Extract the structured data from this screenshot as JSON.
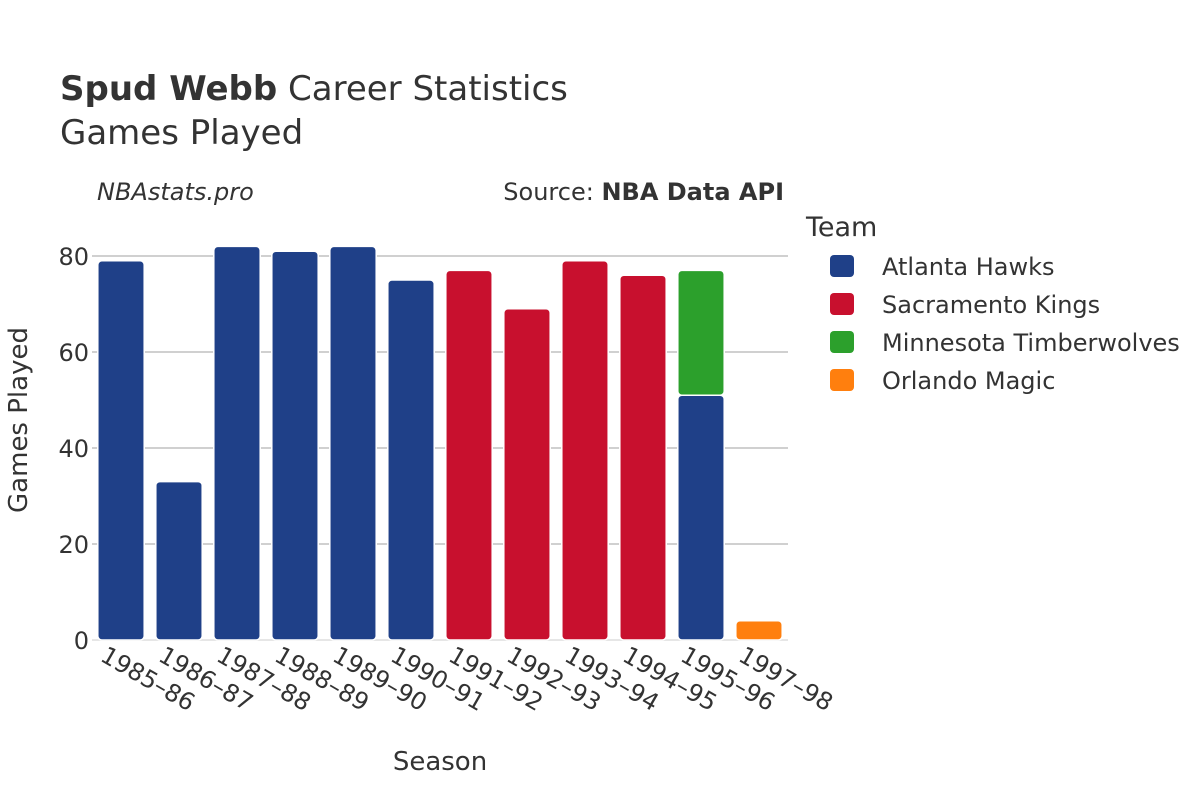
{
  "title": {
    "player": "Spud Webb",
    "rest": " Career Statistics",
    "subtitle": "Games Played"
  },
  "watermark": "NBAstats.pro",
  "source": {
    "prefix": "Source: ",
    "name": "NBA Data API"
  },
  "legend_title": "Team",
  "chart_data": {
    "type": "bar",
    "stacked": true,
    "xlabel": "Season",
    "ylabel": "Games Played",
    "categories": [
      "1985–86",
      "1986–87",
      "1987–88",
      "1988–89",
      "1989–90",
      "1990–91",
      "1991–92",
      "1992–93",
      "1993–94",
      "1994–95",
      "1995–96",
      "1997–98"
    ],
    "ylim": [
      0,
      85
    ],
    "yticks": [
      0,
      20,
      40,
      60,
      80
    ],
    "grid": true,
    "legend_position": "right",
    "series": [
      {
        "name": "Atlanta Hawks",
        "color": "#1f4088",
        "values": [
          79,
          33,
          82,
          81,
          82,
          75,
          0,
          0,
          0,
          0,
          51,
          0
        ]
      },
      {
        "name": "Sacramento Kings",
        "color": "#c8102e",
        "values": [
          0,
          0,
          0,
          0,
          0,
          0,
          77,
          69,
          79,
          76,
          0,
          0
        ]
      },
      {
        "name": "Minnesota Timberwolves",
        "color": "#2ca02c",
        "values": [
          0,
          0,
          0,
          0,
          0,
          0,
          0,
          0,
          0,
          0,
          26,
          0
        ]
      },
      {
        "name": "Orlando Magic",
        "color": "#ff7f0e",
        "values": [
          0,
          0,
          0,
          0,
          0,
          0,
          0,
          0,
          0,
          0,
          0,
          4
        ]
      }
    ]
  }
}
